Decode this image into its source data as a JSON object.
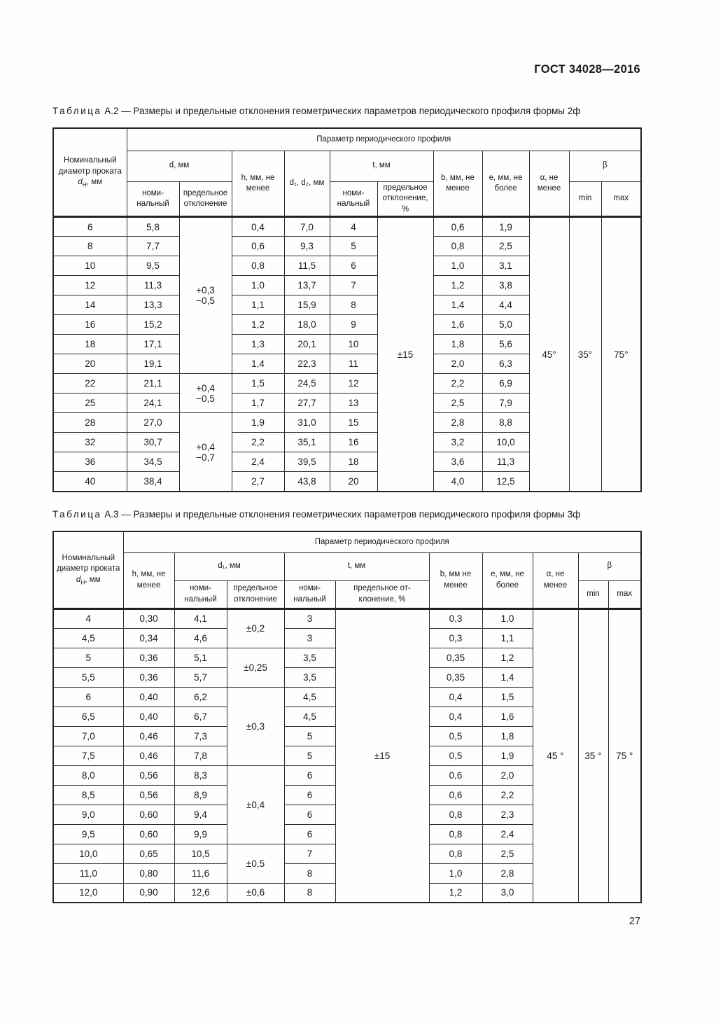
{
  "page": {
    "doc_number": "ГОСТ 34028—2016",
    "page_number": "27"
  },
  "table_a2": {
    "caption_word": "Таблица",
    "caption_num": "А.2",
    "caption_text": "— Размеры и предельные отклонения геометрических параметров периодического профиля формы 2ф",
    "header": {
      "diameter_pre": "Номинальный диаметр проката ",
      "diameter_sym": "d",
      "diameter_sub": "Н",
      "diameter_post": ", мм",
      "param_title": "Параметр периодического профиля",
      "d_group": "d, мм",
      "h": "h, мм, не менее",
      "d12": "d₁, d₂, мм",
      "t_group": "t, мм",
      "b": "b, мм, не менее",
      "e": "е, мм, не более",
      "alpha": "α, не менее",
      "beta": "β",
      "nominal": "номи­нальный",
      "deviation": "предель­ное откло­нение",
      "deviation_pct": "предель­ное откло­нение, %",
      "min": "min",
      "max": "max"
    },
    "rows": [
      [
        "6",
        "5,8",
        "0,4",
        "7,0",
        "4",
        "0,6",
        "1,9"
      ],
      [
        "8",
        "7,7",
        "0,6",
        "9,3",
        "5",
        "0,8",
        "2,5"
      ],
      [
        "10",
        "9,5",
        "0,8",
        "11,5",
        "6",
        "1,0",
        "3,1"
      ],
      [
        "12",
        "11,3",
        "1,0",
        "13,7",
        "7",
        "1,2",
        "3,8"
      ],
      [
        "14",
        "13,3",
        "1,1",
        "15,9",
        "8",
        "1,4",
        "4,4"
      ],
      [
        "16",
        "15,2",
        "1,2",
        "18,0",
        "9",
        "1,6",
        "5,0"
      ],
      [
        "18",
        "17,1",
        "1,3",
        "20,1",
        "10",
        "1,8",
        "5,6"
      ],
      [
        "20",
        "19,1",
        "1,4",
        "22,3",
        "11",
        "2,0",
        "6,3"
      ],
      [
        "22",
        "21,1",
        "1,5",
        "24,5",
        "12",
        "2,2",
        "6,9"
      ],
      [
        "25",
        "24,1",
        "1,7",
        "27,7",
        "13",
        "2,5",
        "7,9"
      ],
      [
        "28",
        "27,0",
        "1,9",
        "31,0",
        "15",
        "2,8",
        "8,8"
      ],
      [
        "32",
        "30,7",
        "2,2",
        "35,1",
        "16",
        "3,2",
        "10,0"
      ],
      [
        "36",
        "34,5",
        "2,4",
        "39,5",
        "18",
        "3,6",
        "11,3"
      ],
      [
        "40",
        "38,4",
        "2,7",
        "43,8",
        "20",
        "4,0",
        "12,5"
      ]
    ],
    "d_deviation_groups": [
      {
        "text": "+0,3\n−0,5",
        "span": 8
      },
      {
        "text": "+0,4\n−0,5",
        "span": 2
      },
      {
        "text": "+0,4\n−0,7",
        "span": 4
      }
    ],
    "t_deviation": "±15",
    "alpha_value": "45°",
    "beta_min": "35°",
    "beta_max": "75°",
    "layout": {
      "plain_cols": [
        0,
        1,
        3,
        4,
        5,
        7,
        8
      ],
      "dev_col": 2,
      "t_dev_col": 6,
      "alpha_col": 9,
      "beta_min_col": 10,
      "beta_max_col": 11
    }
  },
  "table_a3": {
    "caption_word": "Таблица",
    "caption_num": "А.3",
    "caption_text": "— Размеры и предельные отклонения геометрических параметров периодического профиля формы 3ф",
    "header": {
      "diameter_pre": "Номинальный диаметр про­ката ",
      "diameter_sym": "d",
      "diameter_sub": "Н",
      "diameter_post": ", мм",
      "param_title": "Параметр периодического профиля",
      "h": "h, мм, не менее",
      "d_group": "d₁, мм",
      "t_group": "t, мм",
      "b": "b, мм не менее",
      "e": "е, мм, не более",
      "alpha": "α, не менее",
      "beta": "β",
      "nominal": "номи­нальный",
      "deviation": "предельное отклонение",
      "deviation_pct": "предельное от­клонение, %",
      "min": "min",
      "max": "max"
    },
    "rows": [
      [
        "4",
        "0,30",
        "4,1",
        "3",
        "0,3",
        "1,0"
      ],
      [
        "4,5",
        "0,34",
        "4,6",
        "3",
        "0,3",
        "1,1"
      ],
      [
        "5",
        "0,36",
        "5,1",
        "3,5",
        "0,35",
        "1,2"
      ],
      [
        "5,5",
        "0,36",
        "5,7",
        "3,5",
        "0,35",
        "1,4"
      ],
      [
        "6",
        "0,40",
        "6,2",
        "4,5",
        "0,4",
        "1,5"
      ],
      [
        "6,5",
        "0,40",
        "6,7",
        "4,5",
        "0,4",
        "1,6"
      ],
      [
        "7,0",
        "0,46",
        "7,3",
        "5",
        "0,5",
        "1,8"
      ],
      [
        "7,5",
        "0,46",
        "7,8",
        "5",
        "0,5",
        "1,9"
      ],
      [
        "8,0",
        "0,56",
        "8,3",
        "6",
        "0,6",
        "2,0"
      ],
      [
        "8,5",
        "0,56",
        "8,9",
        "6",
        "0,6",
        "2,2"
      ],
      [
        "9,0",
        "0,60",
        "9,4",
        "6",
        "0,8",
        "2,3"
      ],
      [
        "9,5",
        "0,60",
        "9,9",
        "6",
        "0,8",
        "2,4"
      ],
      [
        "10,0",
        "0,65",
        "10,5",
        "7",
        "0,8",
        "2,5"
      ],
      [
        "11,0",
        "0,80",
        "11,6",
        "8",
        "1,0",
        "2,8"
      ],
      [
        "12,0",
        "0,90",
        "12,6",
        "8",
        "1,2",
        "3,0"
      ]
    ],
    "d_deviation_groups": [
      {
        "text": "±0,2",
        "span": 2
      },
      {
        "text": "±0,25",
        "span": 2
      },
      {
        "text": "±0,3",
        "span": 4
      },
      {
        "text": "±0,4",
        "span": 4
      },
      {
        "text": "±0,5",
        "span": 2
      },
      {
        "text": "±0,6",
        "span": 1
      }
    ],
    "t_deviation": "±15",
    "alpha_value": "45 °",
    "beta_min": "35 °",
    "beta_max": "75 °",
    "layout": {
      "plain_cols": [
        0,
        1,
        2,
        4,
        6,
        7
      ],
      "dev_col": 3,
      "t_dev_col": 5,
      "alpha_col": 8,
      "beta_min_col": 9,
      "beta_max_col": 10
    }
  }
}
